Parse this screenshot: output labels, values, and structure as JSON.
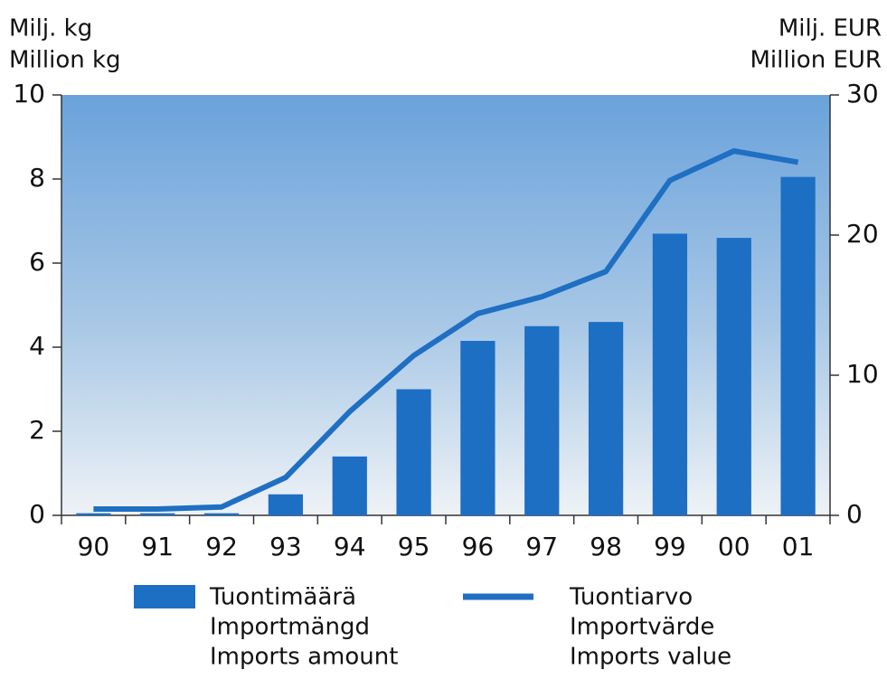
{
  "chart_data": {
    "type": "bar_line",
    "ylabel": [
      "Milj. kg",
      "Million kg"
    ],
    "y2label": [
      "Milj. EUR",
      "Million EUR"
    ],
    "categories": [
      "90",
      "91",
      "92",
      "93",
      "94",
      "95",
      "96",
      "97",
      "98",
      "99",
      "00",
      "01"
    ],
    "series": [
      {
        "name": [
          "Tuontimäärä",
          "Importmängd",
          "Imports amount"
        ],
        "type": "bar",
        "color": "#1d6fc4",
        "values": [
          0.05,
          0.05,
          0.05,
          0.5,
          1.4,
          3.0,
          4.15,
          4.5,
          4.6,
          6.7,
          6.6,
          8.05
        ]
      },
      {
        "name": [
          "Tuontiarvo",
          "Importvärde",
          "Imports value"
        ],
        "type": "line",
        "axis": "y2",
        "color": "#1f6fc2",
        "values": [
          0.45,
          0.45,
          0.6,
          2.7,
          7.4,
          11.4,
          14.4,
          15.6,
          17.4,
          23.9,
          26.0,
          25.2
        ]
      }
    ],
    "ylim": [
      0,
      10
    ],
    "yticks": [
      0,
      2,
      4,
      6,
      8,
      10
    ],
    "y2lim": [
      0,
      30
    ],
    "y2ticks": [
      0,
      10,
      20,
      30
    ]
  }
}
